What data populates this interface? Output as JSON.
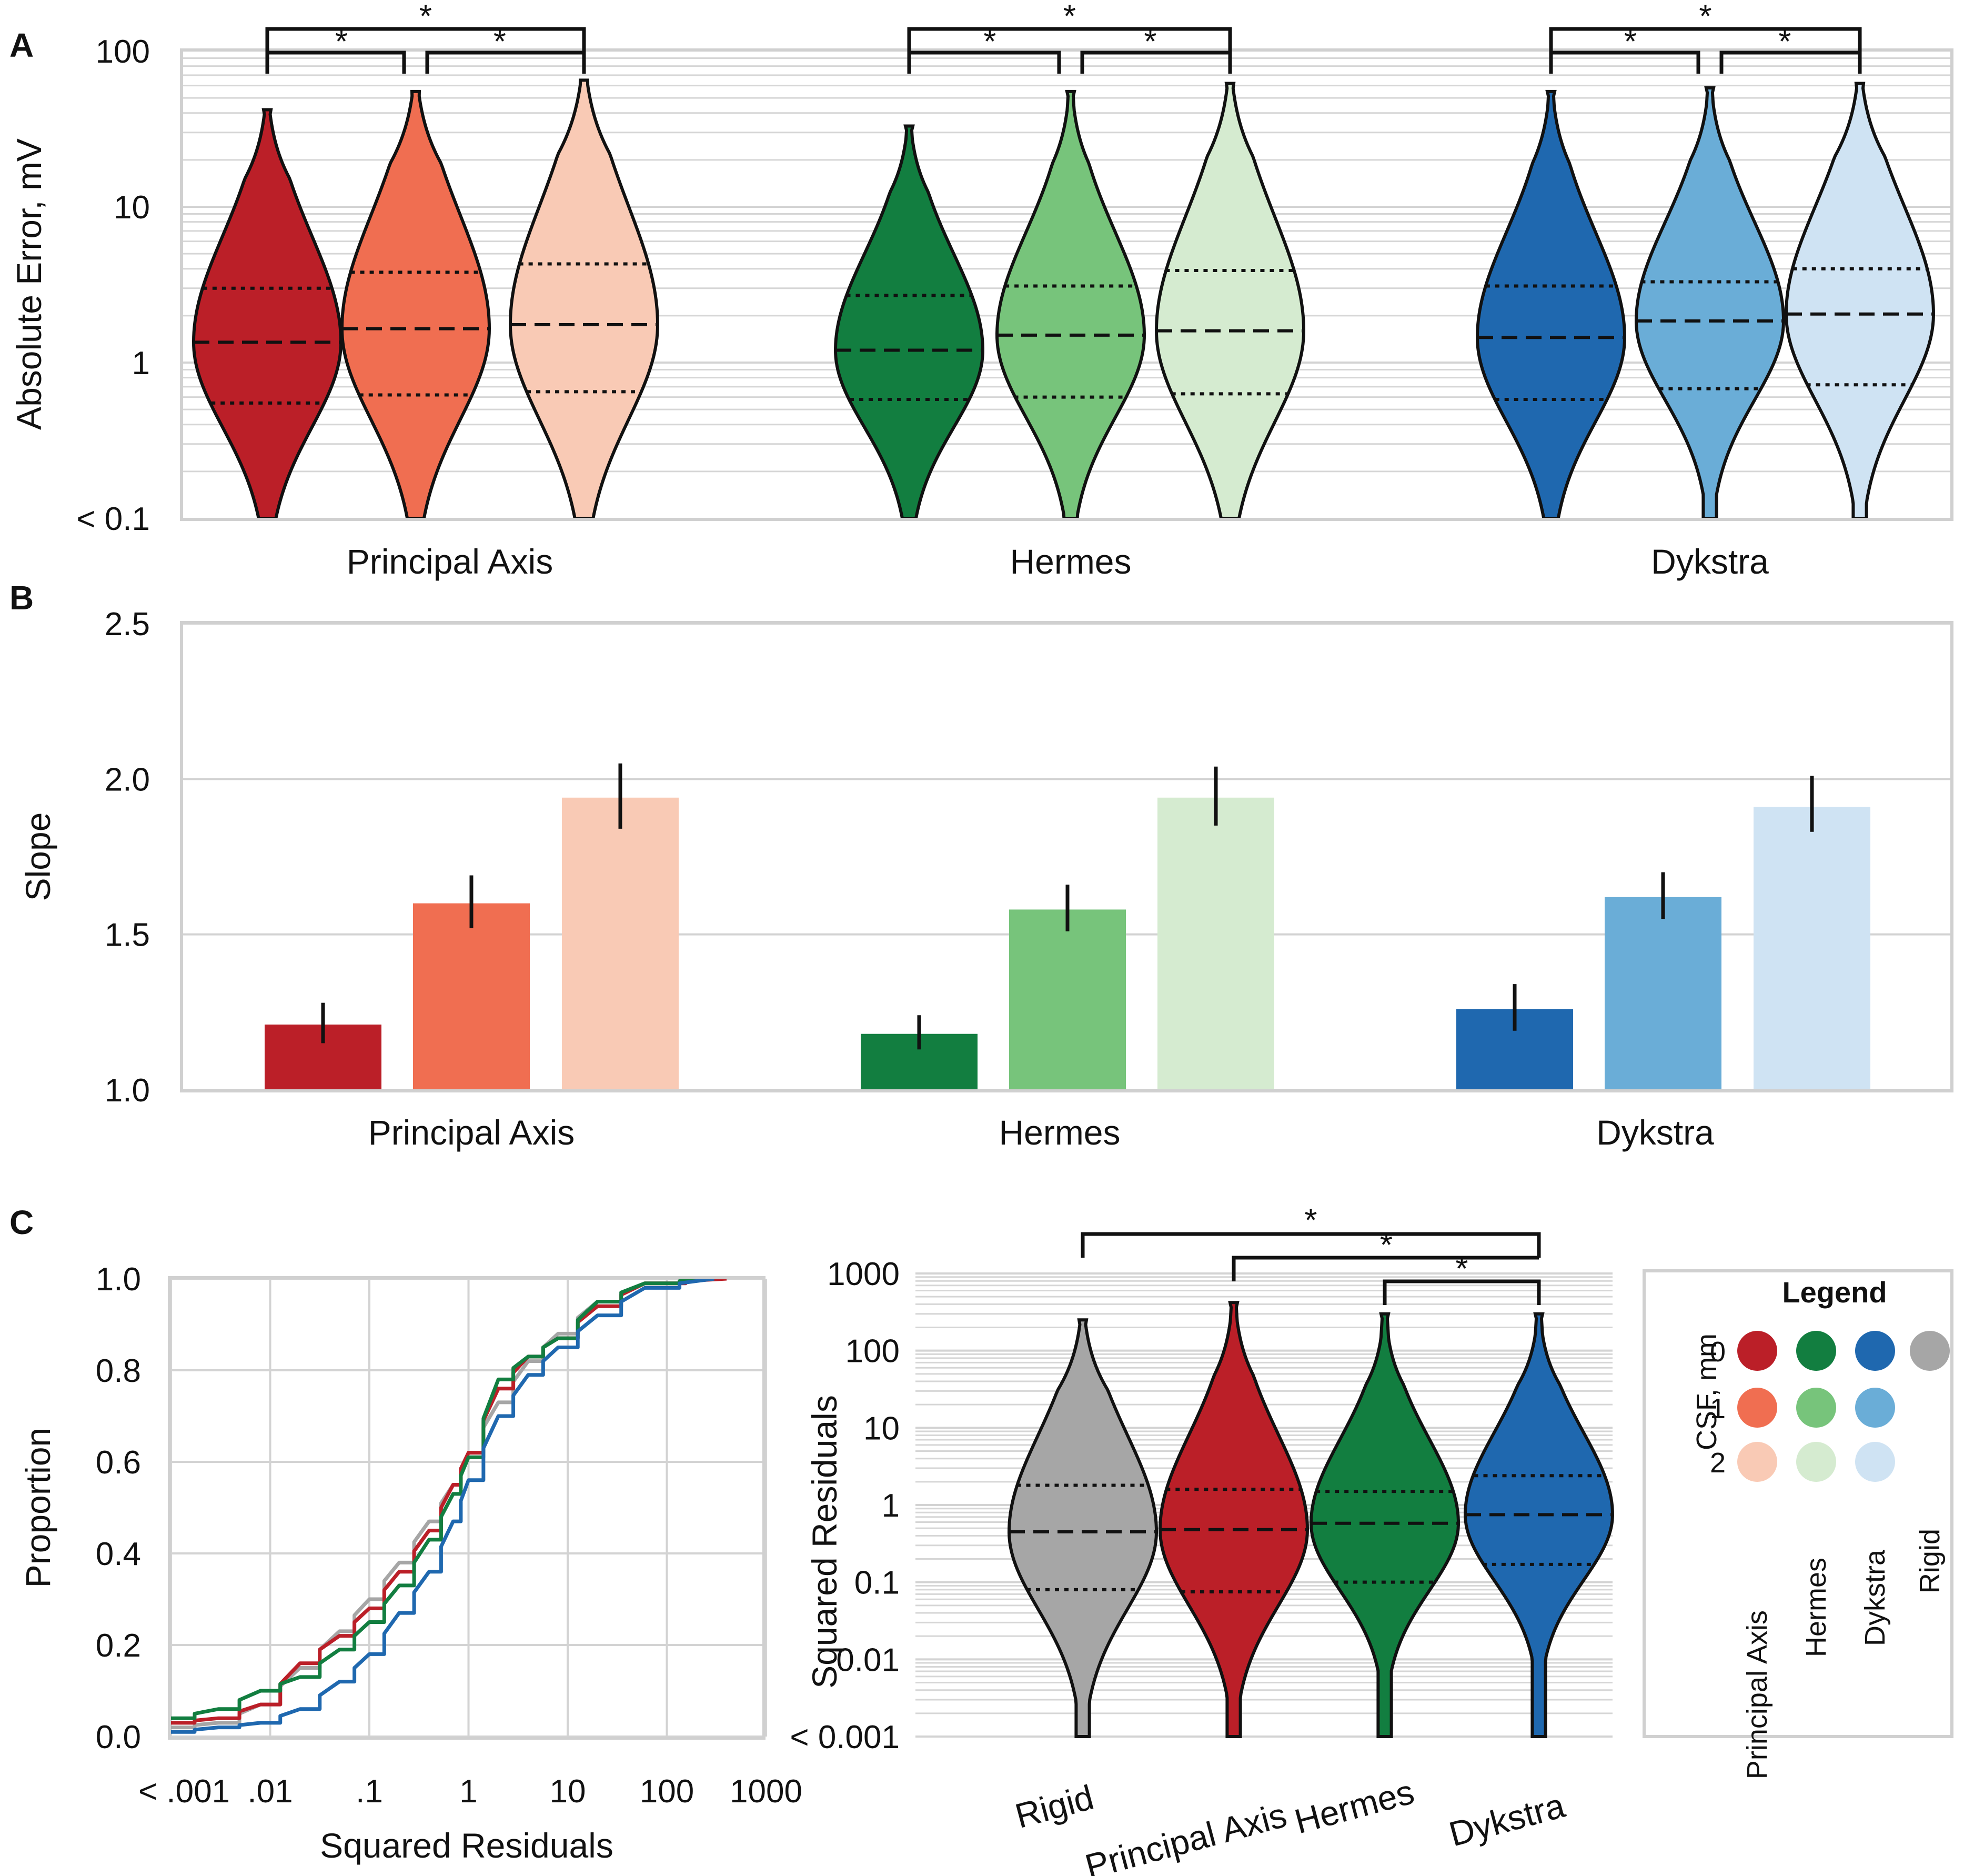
{
  "colors": {
    "principal_axis": [
      "#bb1f28",
      "#f06e51",
      "#f9cab5"
    ],
    "hermes": [
      "#127e40",
      "#77c47b",
      "#d5ebd0"
    ],
    "dykstra": [
      "#1f68af",
      "#6aadd7",
      "#cfe3f3"
    ],
    "rigid": "#a6a6a6"
  },
  "chart_data": [
    {
      "panel": "A",
      "type": "violin",
      "ylabel": "Absolute Error, mV",
      "yscale": "log",
      "ylim": [
        0.1,
        100
      ],
      "yticks": [
        "< 0.1",
        "1",
        "10",
        "100"
      ],
      "groups": [
        {
          "name": "Principal Axis",
          "series": [
            {
              "csf": 0,
              "q1": 0.55,
              "median": 1.35,
              "q3": 3.0,
              "max": 42
            },
            {
              "csf": 1,
              "q1": 0.62,
              "median": 1.65,
              "q3": 3.8,
              "max": 55
            },
            {
              "csf": 2,
              "q1": 0.65,
              "median": 1.75,
              "q3": 4.3,
              "max": 65
            }
          ]
        },
        {
          "name": "Hermes",
          "series": [
            {
              "csf": 0,
              "q1": 0.58,
              "median": 1.2,
              "q3": 2.7,
              "max": 33
            },
            {
              "csf": 1,
              "q1": 0.6,
              "median": 1.5,
              "q3": 3.1,
              "max": 55
            },
            {
              "csf": 2,
              "q1": 0.63,
              "median": 1.6,
              "q3": 3.9,
              "max": 62
            }
          ]
        },
        {
          "name": "Dykstra",
          "series": [
            {
              "csf": 0,
              "q1": 0.58,
              "median": 1.45,
              "q3": 3.1,
              "max": 55
            },
            {
              "csf": 1,
              "q1": 0.68,
              "median": 1.85,
              "q3": 3.3,
              "max": 58
            },
            {
              "csf": 2,
              "q1": 0.72,
              "median": 2.05,
              "q3": 4.0,
              "max": 62
            }
          ]
        }
      ],
      "significance": "*"
    },
    {
      "panel": "B",
      "type": "bar",
      "ylabel": "Slope",
      "ylim": [
        1.0,
        2.5
      ],
      "yticks": [
        "1.0",
        "1.5",
        "2.0",
        "2.5"
      ],
      "groups": [
        {
          "name": "Principal Axis",
          "values": [
            1.21,
            1.6,
            1.94
          ],
          "err_low": [
            1.15,
            1.52,
            1.84
          ],
          "err_high": [
            1.28,
            1.69,
            2.05
          ]
        },
        {
          "name": "Hermes",
          "values": [
            1.18,
            1.58,
            1.94
          ],
          "err_low": [
            1.13,
            1.51,
            1.85
          ],
          "err_high": [
            1.24,
            1.66,
            2.04
          ]
        },
        {
          "name": "Dykstra",
          "values": [
            1.26,
            1.62,
            1.91
          ],
          "err_low": [
            1.19,
            1.55,
            1.83
          ],
          "err_high": [
            1.34,
            1.7,
            2.01
          ]
        }
      ]
    },
    {
      "panel": "C",
      "type": "line",
      "xlabel": "Squared Residuals",
      "ylabel": "Proportion",
      "xscale": "log",
      "xlim": [
        0.001,
        1000
      ],
      "xticks": [
        "< .001",
        ".01",
        ".1",
        "1",
        "10",
        "100",
        "1000"
      ],
      "ylim": [
        0.0,
        1.0
      ],
      "yticks": [
        "0.0",
        "0.2",
        "0.4",
        "0.6",
        "0.8",
        "1.0"
      ],
      "series": [
        {
          "name": "Rigid",
          "color": "#a6a6a6",
          "x": [
            0.001,
            0.003,
            0.008,
            0.02,
            0.05,
            0.1,
            0.2,
            0.4,
            0.7,
            1,
            2,
            4,
            8,
            20,
            60,
            300
          ],
          "y": [
            0.02,
            0.03,
            0.07,
            0.15,
            0.23,
            0.3,
            0.38,
            0.47,
            0.55,
            0.62,
            0.73,
            0.82,
            0.88,
            0.95,
            0.99,
            1.0
          ]
        },
        {
          "name": "Principal Axis",
          "color": "#bb1f28",
          "x": [
            0.001,
            0.003,
            0.008,
            0.02,
            0.05,
            0.1,
            0.2,
            0.4,
            0.7,
            1,
            2,
            4,
            8,
            20,
            60,
            400
          ],
          "y": [
            0.03,
            0.04,
            0.07,
            0.16,
            0.22,
            0.28,
            0.36,
            0.45,
            0.55,
            0.62,
            0.76,
            0.83,
            0.87,
            0.94,
            0.99,
            1.0
          ]
        },
        {
          "name": "Hermes",
          "color": "#127e40",
          "x": [
            0.001,
            0.003,
            0.008,
            0.02,
            0.05,
            0.1,
            0.2,
            0.4,
            0.7,
            1,
            2,
            4,
            8,
            20,
            60,
            300
          ],
          "y": [
            0.04,
            0.06,
            0.1,
            0.13,
            0.19,
            0.25,
            0.33,
            0.43,
            0.53,
            0.61,
            0.78,
            0.83,
            0.87,
            0.95,
            0.99,
            1.0
          ]
        },
        {
          "name": "Dykstra",
          "color": "#1f68af",
          "x": [
            0.001,
            0.003,
            0.008,
            0.02,
            0.05,
            0.1,
            0.2,
            0.4,
            0.7,
            1,
            2,
            4,
            8,
            20,
            60,
            300
          ],
          "y": [
            0.01,
            0.02,
            0.03,
            0.06,
            0.12,
            0.18,
            0.27,
            0.36,
            0.47,
            0.56,
            0.7,
            0.79,
            0.85,
            0.92,
            0.98,
            1.0
          ]
        }
      ]
    },
    {
      "panel": "C",
      "type": "violin",
      "ylabel": "Squared Residuals",
      "yscale": "log",
      "ylim": [
        0.001,
        1000
      ],
      "yticks": [
        "< 0.001",
        "0.01",
        "0.1",
        "1",
        "10",
        "100",
        "1000"
      ],
      "categories": [
        "Rigid",
        "Principal Axis",
        "Hermes",
        "Dykstra"
      ],
      "series": [
        {
          "name": "Rigid",
          "q1": 0.08,
          "median": 0.45,
          "q3": 1.8,
          "max": 250
        },
        {
          "name": "Principal Axis",
          "q1": 0.075,
          "median": 0.48,
          "q3": 1.6,
          "max": 420
        },
        {
          "name": "Hermes",
          "q1": 0.1,
          "median": 0.58,
          "q3": 1.5,
          "max": 300
        },
        {
          "name": "Dykstra",
          "q1": 0.17,
          "median": 0.75,
          "q3": 2.4,
          "max": 300
        }
      ],
      "significance": "*"
    }
  ],
  "panel_labels": [
    "A",
    "B",
    "C"
  ],
  "legend": {
    "title": "Legend",
    "axis_label": "CSF, mm",
    "rows": [
      "0",
      "1",
      "2"
    ],
    "columns": [
      "Principal Axis",
      "Hermes",
      "Dykstra",
      "Rigid"
    ]
  }
}
